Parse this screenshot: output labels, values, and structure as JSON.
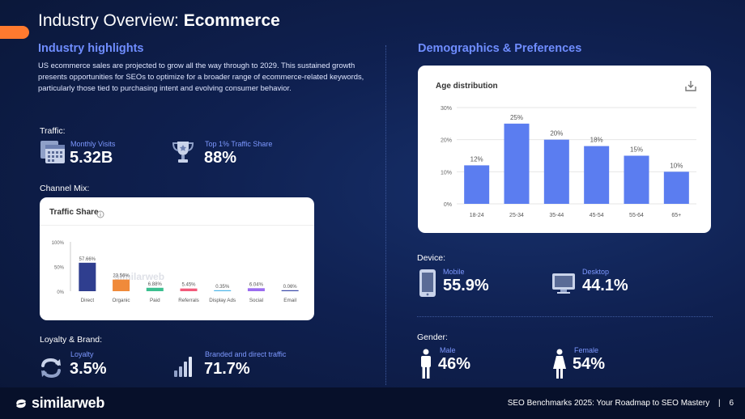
{
  "header": {
    "title_prefix": "Industry Overview: ",
    "title_bold": "Ecommerce"
  },
  "highlights": {
    "heading": "Industry highlights",
    "body": "US ecommerce sales are projected to grow all the way through to 2029. This sustained growth presents opportunities for SEOs to optimize for a broader range of ecommerce-related keywords, particularly those tied to purchasing intent and evolving consumer behavior."
  },
  "traffic": {
    "label": "Traffic:",
    "monthly_visits_label": "Monthly Visits",
    "monthly_visits_value": "5.32B",
    "share_label": "Top 1%  Traffic Share",
    "share_value": "88%"
  },
  "channel_mix": {
    "label": "Channel Mix:",
    "card_title": "Traffic Share",
    "info_icon": "info-icon",
    "watermark": "similarweb"
  },
  "loyalty": {
    "label": "Loyalty & Brand:",
    "loyalty_label": "Loyalty",
    "loyalty_value": "3.5%",
    "branded_label": "Branded and direct traffic",
    "branded_value": "71.7%"
  },
  "demographics": {
    "heading": "Demographics & Preferences",
    "card_title": "Age distribution",
    "download_icon": "download-icon"
  },
  "device": {
    "label": "Device:",
    "mobile_label": "Mobile",
    "mobile_value": "55.9%",
    "desktop_label": "Desktop",
    "desktop_value": "44.1%"
  },
  "gender": {
    "label": "Gender:",
    "male_label": "Male",
    "male_value": "46%",
    "female_label": "Female",
    "female_value": "54%"
  },
  "footer": {
    "logo_text": "similarweb",
    "text": "SEO Benchmarks 2025: Your Roadmap to SEO Mastery",
    "separator": "|",
    "page_number": "6"
  },
  "colors": {
    "accent": "#6f8dff",
    "orange": "#ff7a2f",
    "bar_blue": "#5b7df0"
  },
  "chart_data": [
    {
      "type": "bar",
      "title": "Traffic Share",
      "categories": [
        "Direct",
        "Organic",
        "Paid",
        "Referrals",
        "Display Ads",
        "Social",
        "Email"
      ],
      "values": [
        57.66,
        23.56,
        6.88,
        5.45,
        0.35,
        6.04,
        0.06
      ],
      "value_labels": [
        "57.66%",
        "23.56%",
        "6.88%",
        "5.45%",
        "0.35%",
        "6.04%",
        "0.06%"
      ],
      "colors": [
        "#2f3e8f",
        "#f08a3a",
        "#3bbf8f",
        "#f25a7a",
        "#4db6e8",
        "#9b6cf0",
        "#3b4aa8"
      ],
      "yticks": [
        "100%",
        "50%",
        "0%"
      ],
      "ylim": [
        0,
        100
      ],
      "grid": false
    },
    {
      "type": "bar",
      "title": "Age distribution",
      "categories": [
        "18-24",
        "25-34",
        "35-44",
        "45-54",
        "55-64",
        "65+"
      ],
      "values": [
        12,
        25,
        20,
        18,
        15,
        10
      ],
      "value_labels": [
        "12%",
        "25%",
        "20%",
        "18%",
        "15%",
        "10%"
      ],
      "yticks": [
        "30%",
        "20%",
        "10%",
        "0%"
      ],
      "ylim": [
        0,
        30
      ],
      "grid": true
    }
  ]
}
